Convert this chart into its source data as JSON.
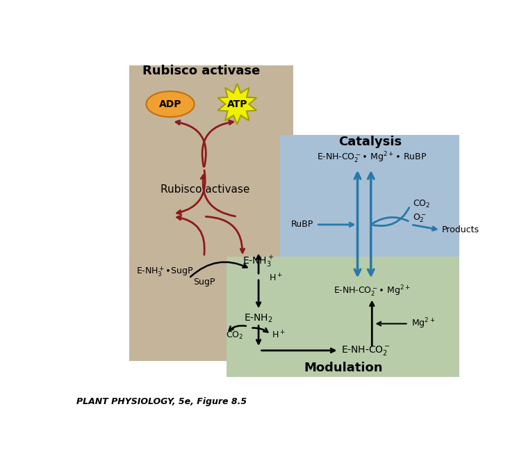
{
  "bg_color": "#ffffff",
  "tan_color": "#c4b49a",
  "blue_color": "#a8c0d6",
  "green_color": "#b8ccaa",
  "dark_red": "#8b1a1a",
  "blue_arrow": "#2878a8",
  "black": "#111111",
  "adp_fill": "#f0a030",
  "adp_edge": "#c07010",
  "atp_fill": "#f0f000",
  "atp_edge": "#a0a000",
  "title_rubisco": "Rubisco activase",
  "title_catalysis": "Catalysis",
  "title_modulation": "Modulation",
  "caption": "PLANT PHYSIOLOGY, 5e, Figure 8.5"
}
